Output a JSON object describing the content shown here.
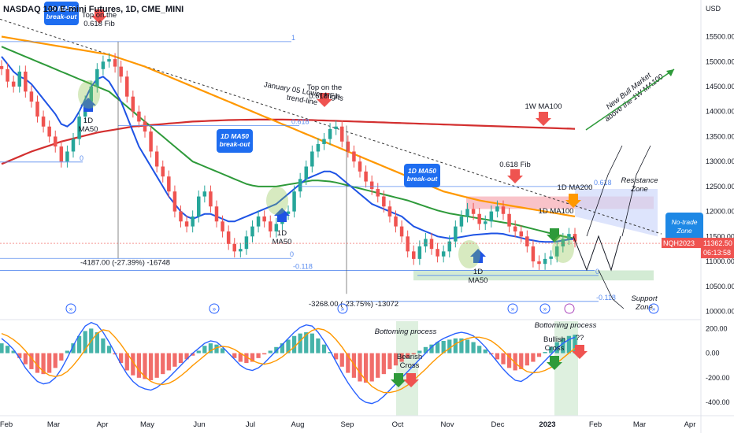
{
  "chart_data": {
    "type": "candlestick",
    "title": "NASDAQ 100 E-mini Futures, 1D, CME_MINI",
    "symbol_badge": "NQH2023",
    "last_price": "11362.50",
    "countdown": "06:13:58",
    "price_axis_label": "USD",
    "y_ticks": [
      "15500.00",
      "15000.00",
      "14500.00",
      "14000.00",
      "13500.00",
      "13000.00",
      "12500.00",
      "12000.00",
      "11500.00",
      "11000.00",
      "10500.00",
      "10000.00"
    ],
    "y_range": [
      9850,
      15950
    ],
    "osc_ticks": [
      "200.00",
      "0.00",
      "-200.00",
      "-400.00"
    ],
    "osc_range": [
      -470,
      260
    ],
    "x_ticks": [
      "Feb",
      "Mar",
      "Apr",
      "May",
      "Jun",
      "Jul",
      "Aug",
      "Sep",
      "Oct",
      "Nov",
      "Dec",
      "2023",
      "Feb",
      "Mar",
      "Apr"
    ],
    "closes": [
      14850,
      14600,
      14500,
      14800,
      14400,
      14200,
      13900,
      13700,
      13500,
      13300,
      13000,
      13200,
      13450,
      13900,
      14200,
      14500,
      14850,
      15000,
      15050,
      14900,
      14700,
      14300,
      14000,
      13800,
      13600,
      13200,
      12900,
      12700,
      12400,
      12000,
      11800,
      11700,
      11900,
      12300,
      12400,
      12100,
      11800,
      11600,
      11350,
      11200,
      11250,
      11500,
      11700,
      11900,
      11800,
      11600,
      11750,
      11950,
      12000,
      12400,
      12650,
      12900,
      13200,
      13350,
      13450,
      13650,
      13700,
      13400,
      13200,
      13000,
      12800,
      12600,
      12450,
      12300,
      12100,
      11900,
      11700,
      11500,
      11200,
      11050,
      11300,
      11450,
      11250,
      11100,
      11200,
      11400,
      11700,
      11900,
      12050,
      11950,
      11750,
      11800,
      12000,
      12100,
      11950,
      11700,
      11600,
      11500,
      11300,
      11000,
      10950,
      11050,
      11100,
      11300,
      11450,
      11550,
      11400
    ],
    "ma50_1d": [
      15100,
      14950,
      14800,
      14700,
      14650,
      14550,
      14400,
      14250,
      14100,
      13950,
      13750,
      13700,
      13800,
      14000,
      14250,
      14500,
      14650,
      14700,
      14600,
      14400,
      14200,
      13900,
      13600,
      13300,
      13100,
      12900,
      12700,
      12500,
      12300,
      12150,
      12000,
      11900,
      11850,
      11900,
      11950,
      11950,
      11900,
      11850,
      11800,
      11800,
      11850,
      11900,
      11950,
      12000,
      12050,
      12100,
      12150,
      12250,
      12350,
      12450,
      12550,
      12650,
      12700,
      12750,
      12800,
      12800,
      12750,
      12650,
      12550,
      12450,
      12350,
      12250,
      12150,
      12100,
      12050,
      12000,
      11950,
      11900,
      11800,
      11700,
      11650,
      11600,
      11550,
      11500,
      11480,
      11460,
      11470,
      11490,
      11510,
      11530,
      11540,
      11550,
      11560,
      11560,
      11550,
      11520,
      11500,
      11470,
      11440,
      11420,
      11400,
      11390,
      11390,
      11400,
      11420,
      11440,
      11450
    ],
    "ma100_1d": [
      15300,
      15250,
      15200,
      15150,
      15100,
      15050,
      15000,
      14950,
      14900,
      14850,
      14800,
      14750,
      14700,
      14650,
      14600,
      14550,
      14500,
      14450,
      14400,
      14300,
      14200,
      14100,
      14000,
      13900,
      13800,
      13700,
      13600,
      13500,
      13400,
      13300,
      13200,
      13100,
      13000,
      12950,
      12900,
      12850,
      12800,
      12750,
      12700,
      12650,
      12600,
      12550,
      12520,
      12500,
      12500,
      12500,
      12500,
      12520,
      12540,
      12560,
      12580,
      12600,
      12620,
      12620,
      12610,
      12600,
      12580,
      12550,
      12520,
      12490,
      12460,
      12430,
      12400,
      12370,
      12340,
      12310,
      12280,
      12250,
      12220,
      12180,
      12140,
      12100,
      12060,
      12020,
      11990,
      11960,
      11940,
      11920,
      11900,
      11880,
      11860,
      11840,
      11820,
      11800,
      11780,
      11760,
      11740,
      11710,
      11680,
      11650,
      11620,
      11590,
      11560,
      11530,
      11500,
      11480,
      11460
    ],
    "ma200_1d": [
      15500,
      15480,
      15460,
      15440,
      15420,
      15400,
      15380,
      15360,
      15340,
      15320,
      15300,
      15280,
      15260,
      15240,
      15220,
      15200,
      15180,
      15160,
      15140,
      15100,
      15060,
      15020,
      14980,
      14940,
      14900,
      14850,
      14800,
      14750,
      14700,
      14650,
      14600,
      14550,
      14500,
      14450,
      14400,
      14350,
      14300,
      14250,
      14200,
      14150,
      14100,
      14050,
      14000,
      13950,
      13900,
      13850,
      13800,
      13750,
      13700,
      13650,
      13600,
      13550,
      13500,
      13450,
      13400,
      13350,
      13300,
      13250,
      13200,
      13150,
      13100,
      13050,
      13000,
      12950,
      12900,
      12850,
      12800,
      12750,
      12700,
      12650,
      12600,
      12550,
      12500,
      12450,
      12400,
      12370,
      12340,
      12310,
      12280,
      12250,
      12220,
      12200,
      12180,
      12160,
      12140,
      12120,
      12100,
      12080,
      12060,
      12040,
      12020,
      12000,
      11980,
      11960,
      11940,
      11920,
      11900
    ],
    "ma100_1w": [
      12950,
      13000,
      13050,
      13100,
      13150,
      13200,
      13240,
      13280,
      13320,
      13360,
      13400,
      13430,
      13460,
      13490,
      13520,
      13550,
      13580,
      13600,
      13620,
      13640,
      13660,
      13680,
      13700,
      13710,
      13720,
      13730,
      13740,
      13750,
      13760,
      13770,
      13780,
      13790,
      13800,
      13805,
      13810,
      13815,
      13820,
      13825,
      13830,
      13832,
      13834,
      13836,
      13838,
      13840,
      13840,
      13840,
      13840,
      13840,
      13838,
      13836,
      13834,
      13832,
      13830,
      13826,
      13822,
      13818,
      13814,
      13810,
      13806,
      13802,
      13798,
      13794,
      13790,
      13786,
      13782,
      13778,
      13774,
      13770,
      13766,
      13762,
      13758,
      13754,
      13750,
      13746,
      13742,
      13738,
      13734,
      13730,
      13726,
      13722,
      13718,
      13714,
      13710,
      13706,
      13702,
      13698,
      13694,
      13690,
      13686,
      13682,
      13678,
      13674,
      13670,
      13666,
      13662,
      13658,
      13654
    ],
    "hist": [
      80,
      60,
      20,
      -40,
      -90,
      -130,
      -160,
      -170,
      -160,
      -120,
      -60,
      20,
      80,
      140,
      180,
      200,
      170,
      120,
      60,
      -10,
      -80,
      -140,
      -180,
      -200,
      -210,
      -220,
      -200,
      -170,
      -140,
      -110,
      -80,
      -50,
      -20,
      20,
      60,
      80,
      70,
      40,
      0,
      -40,
      -70,
      -80,
      -70,
      -40,
      -10,
      20,
      50,
      80,
      110,
      140,
      160,
      170,
      160,
      120,
      70,
      10,
      -50,
      -110,
      -160,
      -200,
      -230,
      -240,
      -230,
      -200,
      -170,
      -130,
      -100,
      -70,
      -40,
      -10,
      20,
      50,
      70,
      90,
      100,
      110,
      120,
      120,
      110,
      90,
      60,
      30,
      -10,
      -50,
      -90,
      -120,
      -140,
      -130,
      -100,
      -70,
      -30,
      10,
      50,
      90,
      120,
      140,
      150
    ],
    "macd": [
      120,
      80,
      30,
      -40,
      -120,
      -180,
      -230,
      -250,
      -240,
      -200,
      -130,
      -40,
      60,
      150,
      220,
      250,
      230,
      170,
      90,
      0,
      -90,
      -170,
      -230,
      -270,
      -290,
      -300,
      -280,
      -240,
      -200,
      -150,
      -100,
      -50,
      0,
      40,
      80,
      100,
      90,
      50,
      0,
      -50,
      -100,
      -130,
      -140,
      -120,
      -80,
      -30,
      20,
      70,
      120,
      170,
      210,
      230,
      220,
      170,
      100,
      20,
      -70,
      -160,
      -240,
      -310,
      -370,
      -400,
      -410,
      -390,
      -350,
      -300,
      -250,
      -200,
      -150,
      -100,
      -50,
      0,
      50,
      90,
      120,
      140,
      160,
      170,
      160,
      140,
      100,
      50,
      -10,
      -70,
      -130,
      -180,
      -220,
      -230,
      -200,
      -160,
      -110,
      -60,
      -10,
      40,
      80,
      110,
      130
    ],
    "signal": [
      160,
      140,
      110,
      70,
      20,
      -40,
      -100,
      -150,
      -180,
      -190,
      -180,
      -150,
      -100,
      -40,
      30,
      100,
      160,
      190,
      180,
      130,
      70,
      0,
      -70,
      -140,
      -190,
      -230,
      -250,
      -255,
      -245,
      -220,
      -185,
      -145,
      -100,
      -60,
      -20,
      20,
      45,
      55,
      50,
      30,
      0,
      -30,
      -60,
      -80,
      -90,
      -80,
      -60,
      -30,
      10,
      50,
      100,
      150,
      185,
      200,
      190,
      160,
      110,
      50,
      -20,
      -90,
      -160,
      -220,
      -270,
      -300,
      -320,
      -320,
      -310,
      -290,
      -260,
      -220,
      -175,
      -130,
      -80,
      -35,
      5,
      40,
      75,
      100,
      120,
      130,
      130,
      120,
      100,
      65,
      20,
      -30,
      -80,
      -120,
      -150,
      -160,
      -155,
      -140,
      -115,
      -80,
      -40,
      0,
      40
    ]
  },
  "header": {
    "title": "NASDAQ 100 E-mini Futures, 1D, CME_MINI"
  },
  "annotations": {
    "top_618_fib_1": "Top on the\n0.618 Fib",
    "top_618_fib_2": "Top on the\n0.618 Fib",
    "fib_618": "0.618 Fib",
    "lower_highs": "January 05 Lower Highs\ntrend-line",
    "ma100_1w_label": "1W MA100",
    "ma200_1d_label": "1D MA200",
    "ma100_1d_label": "1D MA100",
    "ma50_label": "1D\nMA50",
    "ma50_breakout": "1D MA50\nbreak-out",
    "resistance_zone": "Resistance\nZone",
    "support_zone": "Support\nZone",
    "no_trade_zone": "No-trade\nZone",
    "new_bull_market": "New Bull Market\nabove the 1W MA100",
    "measure_1": "-4187.00 (-27.39%) -16748",
    "measure_2": "-3268.00 (-23.75%) -13072",
    "bottoming_1": "Bottoming process",
    "bottoming_2": "Bottoming process",
    "bearish_cross": "Bearish\nCross",
    "bullish_cross": "Bullish\nCross",
    "question_marks": "??",
    "fib_levels": {
      "one": "1",
      "zero": "0",
      "f618": "0.618",
      "neg118": "-0.118"
    }
  },
  "colors": {
    "up": "#26a69a",
    "down": "#ef5350",
    "ma50": "#1e53e5",
    "ma100": "#2e9a3a",
    "ma200": "#ff9800",
    "ma100w": "#d32f2f",
    "resistance_fill": "#f8b9bf",
    "support_fill": "#c8e6c9",
    "no_trade_fill": "#cfd8fb",
    "callout": "#1e6df0",
    "badge": "#ef5350"
  }
}
